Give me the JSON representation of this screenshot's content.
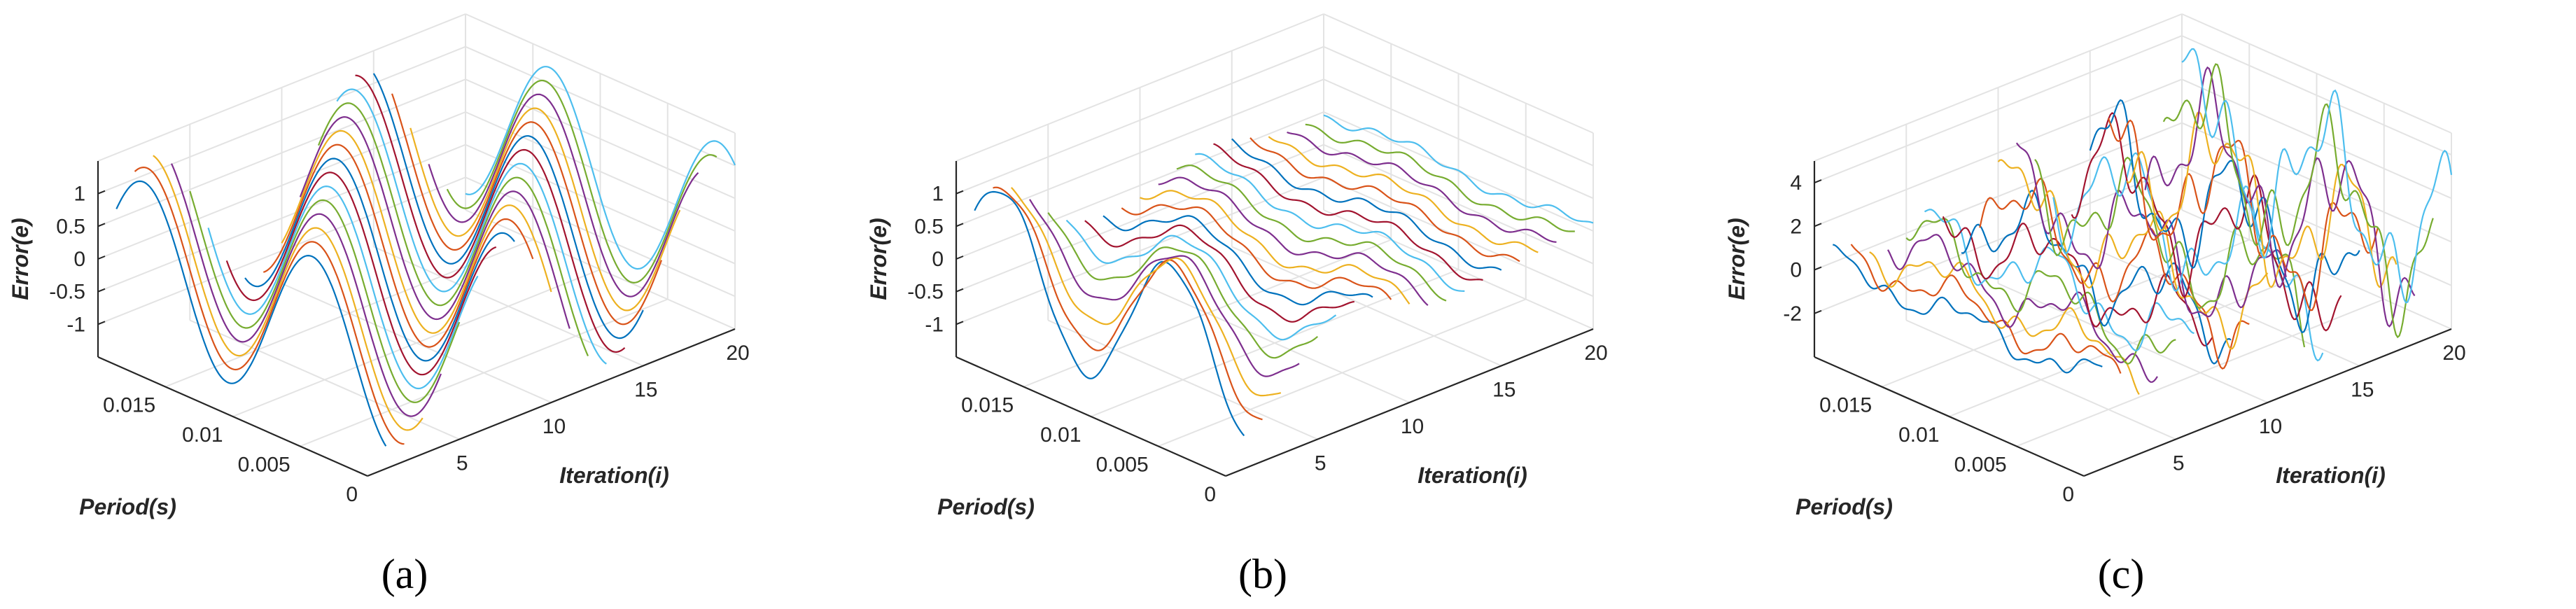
{
  "colors": [
    "#0072BD",
    "#D95319",
    "#EDB120",
    "#7E2F8E",
    "#77AC30",
    "#4DBEEE",
    "#A2142F"
  ],
  "chart_data": [
    {
      "type": "line3d",
      "caption": "(a)",
      "zlabel": "Error(e)",
      "xlabel": "Iteration(i)",
      "ylabel": "Period(s)",
      "zticks": [
        "1",
        "0.5",
        "0",
        "-0.5",
        "-1"
      ],
      "zvalues": [
        1,
        0.5,
        0,
        -0.5,
        -1
      ],
      "zlim": [
        -1.5,
        1.5
      ],
      "xticks": [
        "5",
        "10",
        "15",
        "20"
      ],
      "xvalues": [
        5,
        10,
        15,
        20
      ],
      "xlim": [
        0,
        20
      ],
      "yticks": [
        "0.015",
        "0.01",
        "0.005",
        "0"
      ],
      "yvalues": [
        0.015,
        0.01,
        0.005,
        0
      ],
      "ylim": [
        0,
        0.02
      ],
      "series_count": 20,
      "pattern": "sine error of constant amplitude ~1.3 across all iterations"
    },
    {
      "type": "line3d",
      "caption": "(b)",
      "zlabel": "Error(e)",
      "xlabel": "Iteration(i)",
      "ylabel": "Period(s)",
      "zticks": [
        "1",
        "0.5",
        "0",
        "-0.5",
        "-1"
      ],
      "zvalues": [
        1,
        0.5,
        0,
        -0.5,
        -1
      ],
      "zlim": [
        -1.5,
        1.5
      ],
      "xticks": [
        "5",
        "10",
        "15",
        "20"
      ],
      "xvalues": [
        5,
        10,
        15,
        20
      ],
      "xlim": [
        0,
        20
      ],
      "yticks": [
        "0.015",
        "0.01",
        "0.005",
        "0"
      ],
      "yvalues": [
        0.015,
        0.01,
        0.005,
        0
      ],
      "ylim": [
        0,
        0.02
      ],
      "series_count": 20,
      "pattern": "error decays from ~1.3 to ~0.1 over iterations"
    },
    {
      "type": "line3d",
      "caption": "(c)",
      "zlabel": "Error(e)",
      "xlabel": "Iteration(i)",
      "ylabel": "Period(s)",
      "zticks": [
        "4",
        "2",
        "0",
        "-2"
      ],
      "zvalues": [
        4,
        2,
        0,
        -2
      ],
      "zlim": [
        -4,
        5
      ],
      "xticks": [
        "5",
        "10",
        "15",
        "20"
      ],
      "xvalues": [
        5,
        10,
        15,
        20
      ],
      "xlim": [
        0,
        20
      ],
      "yticks": [
        "0.015",
        "0.01",
        "0.005",
        "0"
      ],
      "yvalues": [
        0.015,
        0.01,
        0.005,
        0
      ],
      "ylim": [
        0,
        0.02
      ],
      "series_count": 20,
      "pattern": "irregular error growing in amplitude up to ~4 with iterations"
    }
  ]
}
